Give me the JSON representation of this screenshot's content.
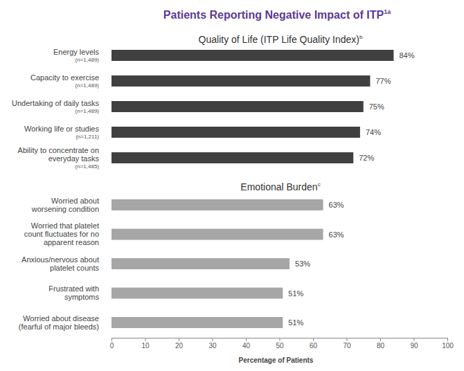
{
  "chart_data": {
    "type": "bar",
    "orientation": "horizontal",
    "title": "Patients Reporting Negative Impact of ITP",
    "title_superscript": "1a",
    "xlabel": "Percentage of Patients",
    "xlim": [
      0,
      100
    ],
    "xticks": [
      0,
      10,
      20,
      30,
      40,
      50,
      60,
      70,
      80,
      90,
      100
    ],
    "grid": false,
    "data_labels": true,
    "series": [
      {
        "name": "Quality of Life (ITP Life Quality Index)",
        "name_superscript": "b",
        "color": "#404040",
        "categories": [
          [
            "Energy levels"
          ],
          [
            "Capacity to exercise"
          ],
          [
            "Undertaking of daily tasks"
          ],
          [
            "Working life or studies"
          ],
          [
            "Ability to concentrate on",
            "everyday tasks"
          ]
        ],
        "n_labels": [
          "(n=1,489)",
          "(n=1,489)",
          "(n=1,489)",
          "(n=1,211)",
          "(n=1,485)"
        ],
        "values": [
          84,
          77,
          75,
          74,
          72
        ],
        "value_labels": [
          "84%",
          "77%",
          "75%",
          "74%",
          "72%"
        ]
      },
      {
        "name": "Emotional Burden",
        "name_superscript": "c",
        "color": "#a6a6a6",
        "categories": [
          [
            "Worried about",
            "worsening condition"
          ],
          [
            "Worried that platelet",
            "count fluctuates for no",
            "apparent reason"
          ],
          [
            "Anxious/nervous about",
            "platelet counts"
          ],
          [
            "Frustrated with",
            "symptoms"
          ],
          [
            "Worried about disease",
            "(fearful of major bleeds)"
          ]
        ],
        "values": [
          63,
          63,
          53,
          51,
          51
        ],
        "value_labels": [
          "63%",
          "63%",
          "53%",
          "51%",
          "51%"
        ]
      }
    ]
  }
}
